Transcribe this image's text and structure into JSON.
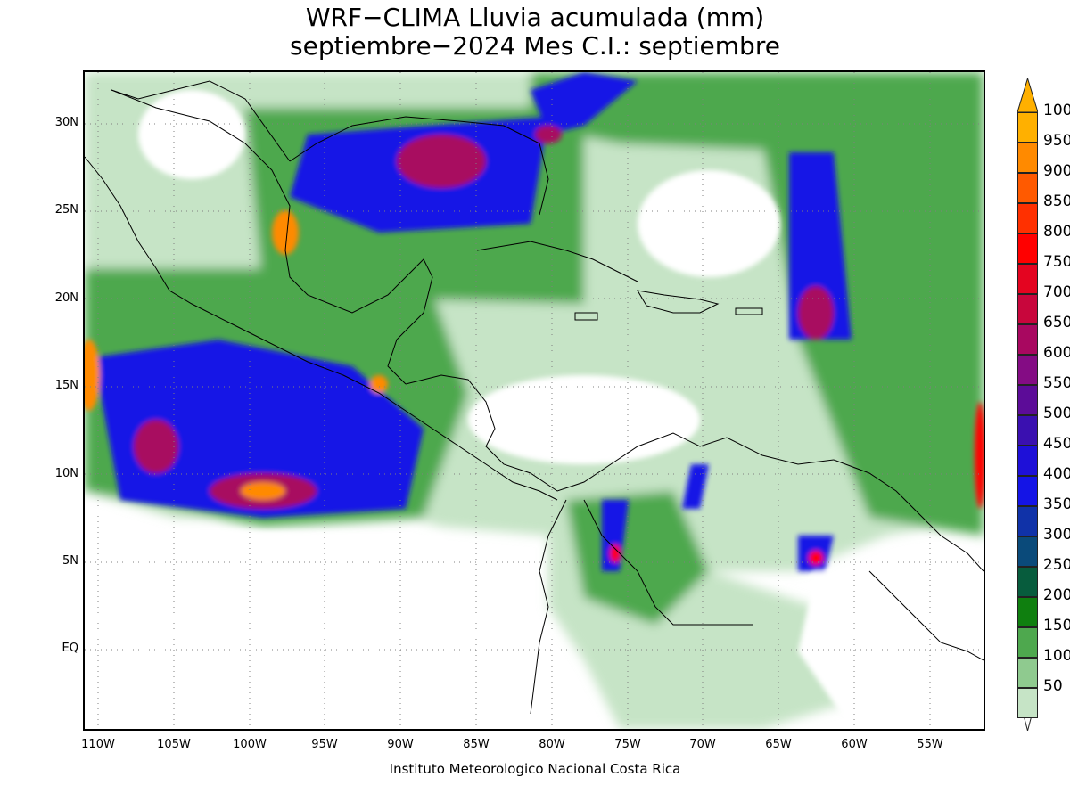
{
  "title_line1": "WRF−CLIMA Lluvia acumulada (mm)",
  "title_line2": "septiembre−2024 Mes C.I.: septiembre",
  "credit": "Instituto Meteorologico Nacional Costa Rica",
  "lat_labels": [
    "30N",
    "25N",
    "20N",
    "15N",
    "10N",
    "5N",
    "EQ"
  ],
  "lon_labels": [
    "110W",
    "105W",
    "100W",
    "95W",
    "90W",
    "85W",
    "80W",
    "75W",
    "70W",
    "65W",
    "60W",
    "55W"
  ],
  "colorbar": {
    "labels": [
      "50",
      "100",
      "150",
      "200",
      "250",
      "300",
      "350",
      "400",
      "450",
      "500",
      "550",
      "600",
      "650",
      "700",
      "750",
      "800",
      "850",
      "900",
      "950",
      "1000"
    ],
    "colors": [
      "#c6e4c6",
      "#8fca8f",
      "#4ea84e",
      "#0f7f0f",
      "#075c3d",
      "#0a4a7a",
      "#1032a8",
      "#1414e6",
      "#1e10d8",
      "#3a10b0",
      "#5c0c98",
      "#840c84",
      "#a80860",
      "#c8063c",
      "#e40420",
      "#ff0000",
      "#ff3000",
      "#ff5a00",
      "#ff8a00",
      "#ffb000"
    ]
  },
  "colors": {
    "coast": "#000000",
    "grid": "#808080"
  }
}
